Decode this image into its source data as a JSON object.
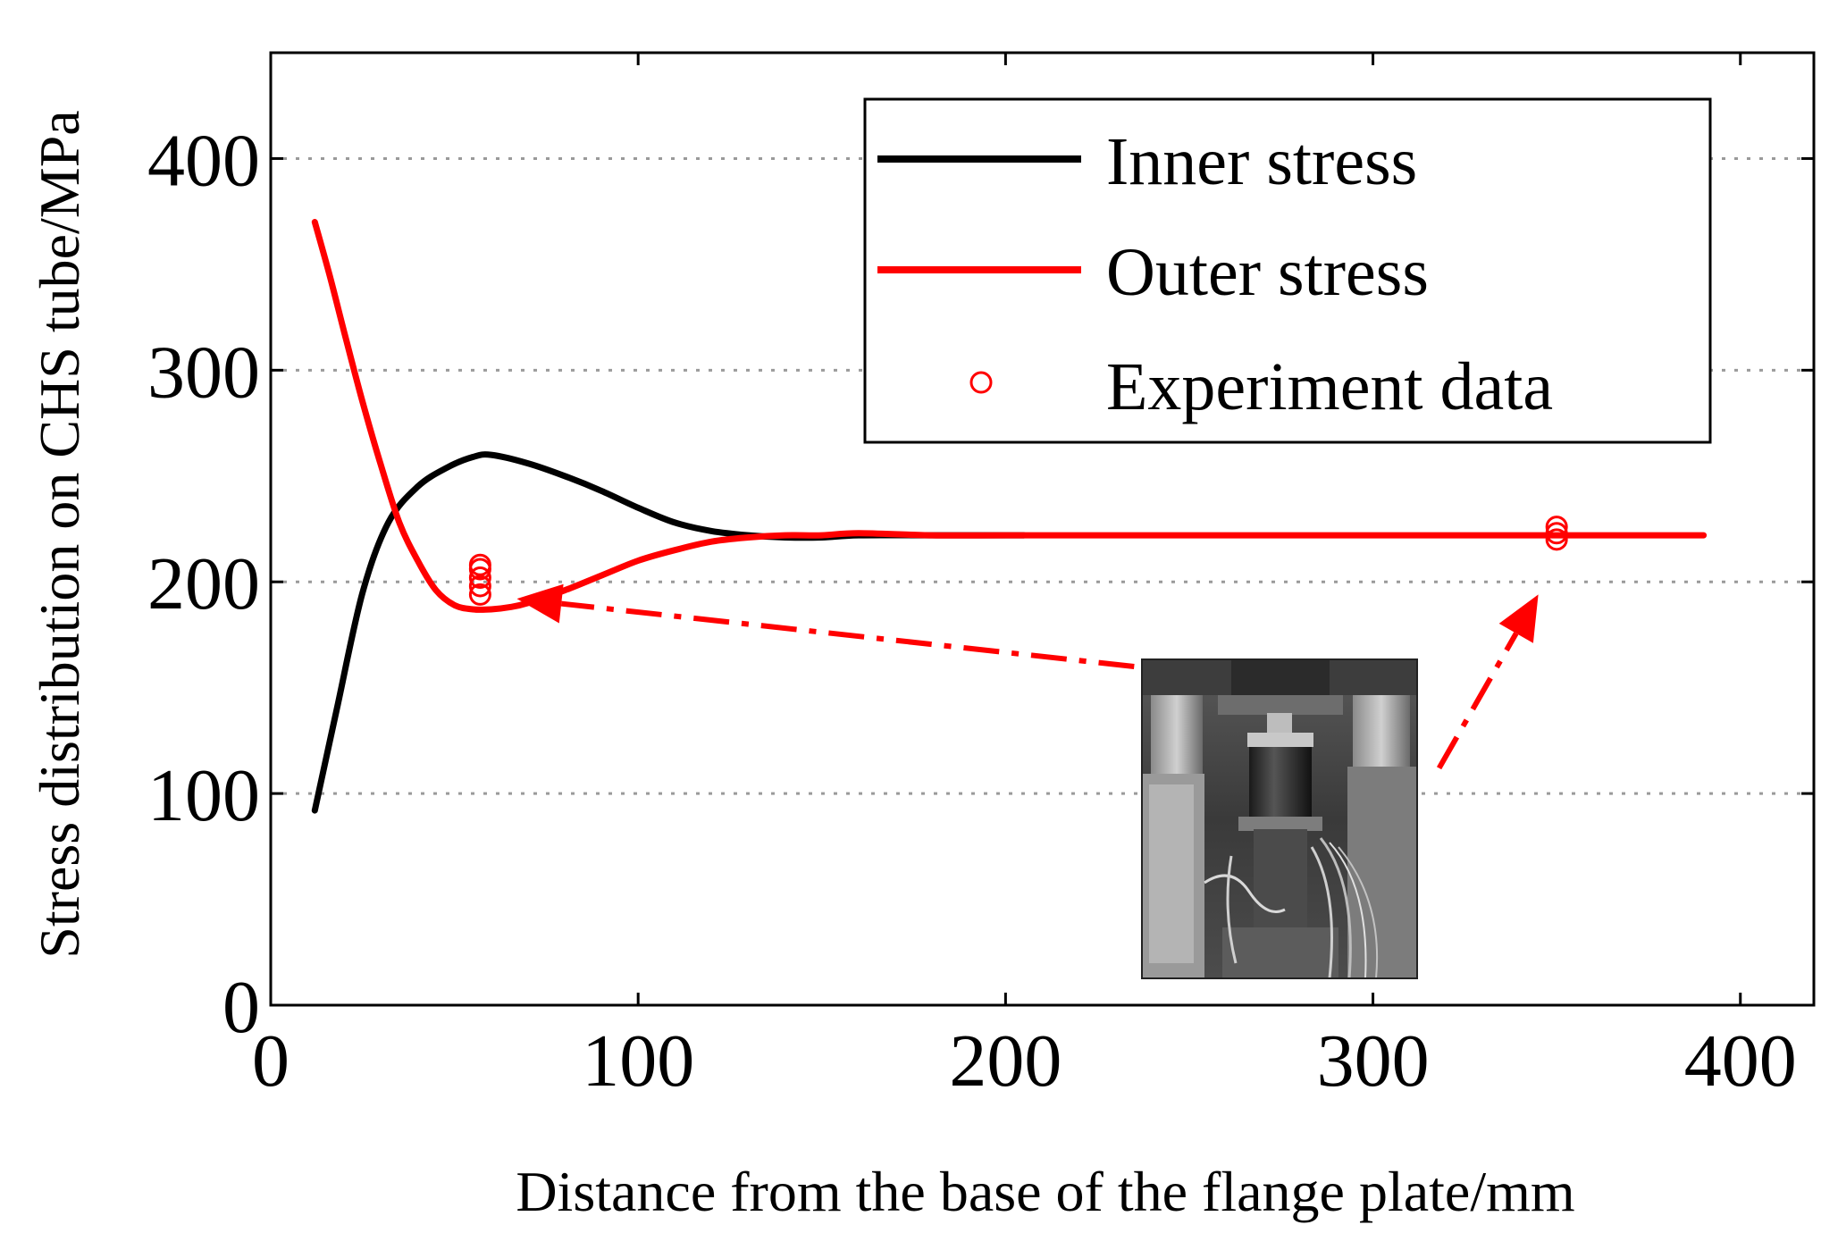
{
  "chart_data": {
    "type": "line",
    "xlabel": "Distance from the base of the flange plate/mm",
    "ylabel": "Stress distribution on CHS tube/MPa",
    "xlim": [
      0,
      420
    ],
    "ylim": [
      0,
      450
    ],
    "xticks": [
      0,
      100,
      200,
      300,
      400
    ],
    "yticks": [
      0,
      100,
      200,
      300,
      400
    ],
    "grid": "horizontal dotted",
    "legend_position": "top-right",
    "series": [
      {
        "name": "Inner stress",
        "color": "#000000",
        "style": "solid",
        "x": [
          12,
          18,
          25,
          32,
          40,
          48,
          55,
          60,
          70,
          80,
          90,
          100,
          110,
          120,
          130,
          140,
          150,
          160,
          180,
          205
        ],
        "y": [
          92,
          140,
          195,
          228,
          245,
          254,
          259,
          260,
          256,
          250,
          243,
          235,
          228,
          224,
          222,
          221,
          221,
          222,
          222,
          222
        ]
      },
      {
        "name": "Outer stress",
        "color": "#ff0000",
        "style": "solid",
        "x": [
          12,
          16,
          20,
          25,
          30,
          35,
          40,
          45,
          50,
          55,
          60,
          65,
          70,
          80,
          90,
          100,
          110,
          120,
          130,
          140,
          150,
          160,
          180,
          200,
          250,
          300,
          350,
          390
        ],
        "y": [
          370,
          345,
          318,
          285,
          255,
          228,
          210,
          196,
          189,
          187,
          187,
          188,
          190,
          196,
          203,
          210,
          215,
          219,
          221,
          222,
          222,
          223,
          222,
          222,
          222,
          222,
          222,
          222
        ]
      },
      {
        "name": "Experiment data",
        "color": "#ff0000",
        "style": "open-circle-markers",
        "x": [
          57,
          57,
          57,
          57,
          57,
          350,
          350,
          350
        ],
        "y": [
          194,
          198,
          202,
          206,
          208,
          220,
          223,
          226
        ]
      }
    ],
    "annotations": [
      {
        "type": "dash-dot-arrow",
        "from": [
          235,
          160
        ],
        "to": [
          67,
          192
        ],
        "target": "Experiment data near 57 mm"
      },
      {
        "type": "dash-dot-arrow",
        "from": [
          318,
          112
        ],
        "to": [
          345,
          194
        ],
        "target": "Experiment data near 350 mm"
      }
    ],
    "inset": "test setup photograph"
  }
}
